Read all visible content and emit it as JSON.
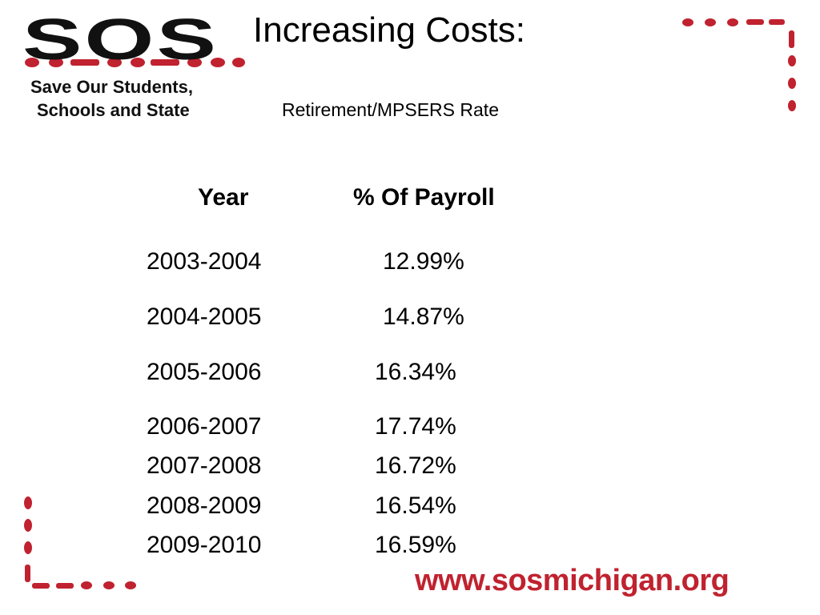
{
  "logo": {
    "mark": "SOS",
    "line1": "Save Our Students,",
    "line2": "Schools and State"
  },
  "header": {
    "title": "Increasing Costs:",
    "subtitle": "Retirement/MPSERS Rate"
  },
  "table": {
    "columns": [
      "Year",
      "% Of Payroll"
    ],
    "rows": [
      [
        "2003-2004",
        "12.99%"
      ],
      [
        "2004-2005",
        "14.87%"
      ],
      [
        "2005-2006",
        "16.34%"
      ],
      [
        "2006-2007",
        "17.74%"
      ],
      [
        "2007-2008",
        "16.72%"
      ],
      [
        "2008-2009",
        "16.54%"
      ],
      [
        "2009-2010",
        "16.59%"
      ]
    ]
  },
  "footer": {
    "url": "www.sosmichigan.org"
  }
}
